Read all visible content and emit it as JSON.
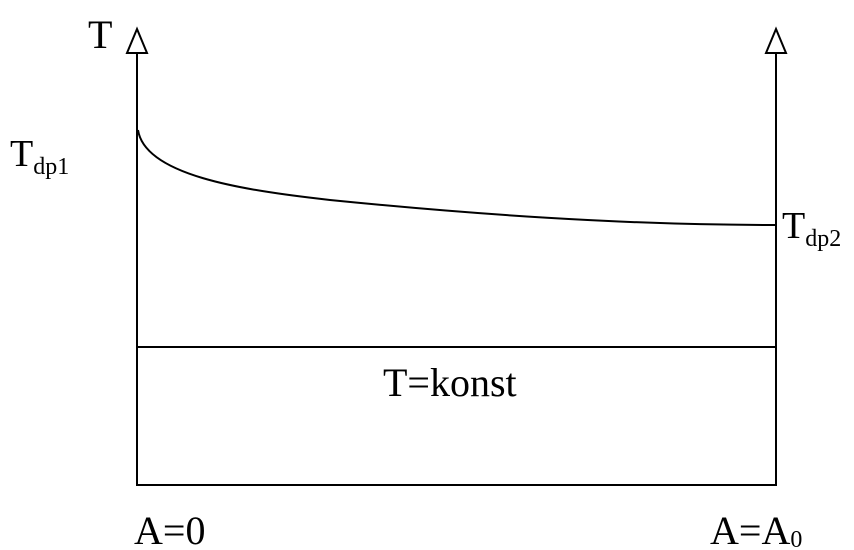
{
  "diagram": {
    "axis_label": "T",
    "t_dp1_main": "T",
    "t_dp1_sub": "dp1",
    "t_dp2_main": "T",
    "t_dp2_sub": "dp2",
    "const_label": "T=konst",
    "a_start": "A=0",
    "a_end_main": "A=A",
    "a_end_sub": "0"
  }
}
